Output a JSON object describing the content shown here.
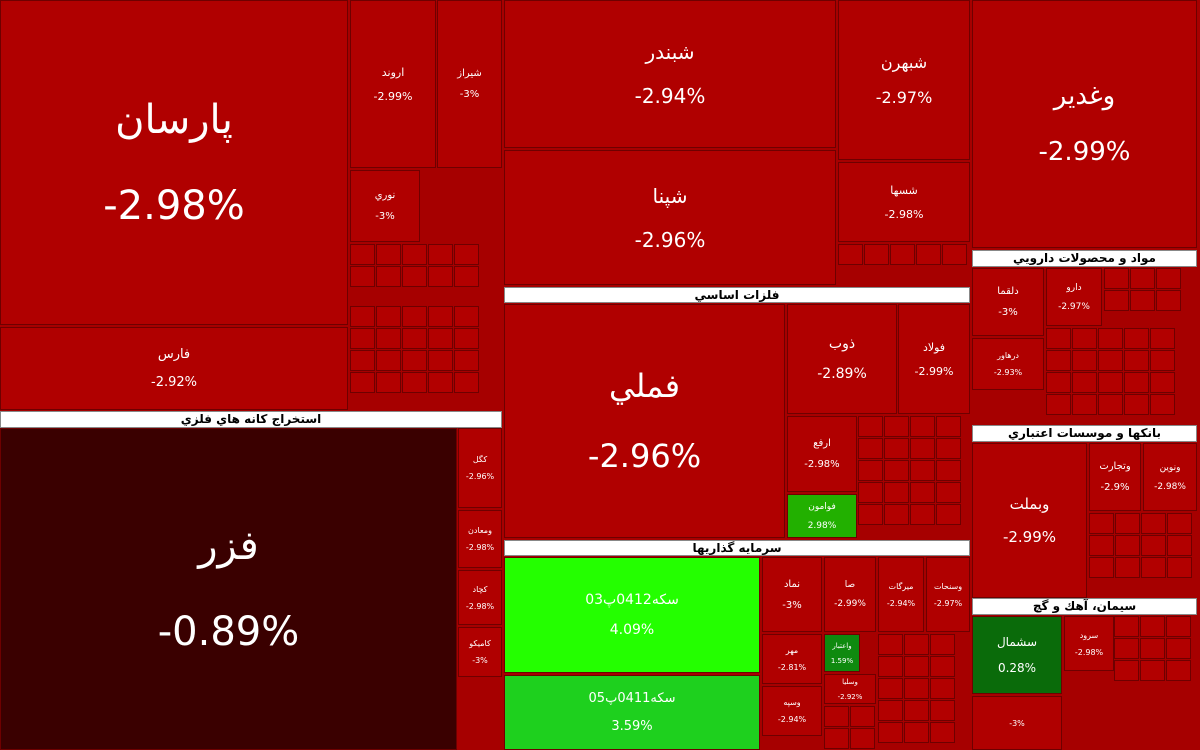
{
  "tiles": [
    {
      "name": "پارسان",
      "change": "-2.98%"
    },
    {
      "name": "اروند",
      "change": "-2.99%"
    },
    {
      "name": "شيراز",
      "change": "-3%"
    },
    {
      "name": "نوري",
      "change": "-3%"
    },
    {
      "name": "فارس",
      "change": "-2.92%"
    },
    {
      "name": "فزر",
      "change": "-0.89%"
    },
    {
      "name": "كگل",
      "change": "-2.96%"
    },
    {
      "name": "ومعادن",
      "change": "-2.98%"
    },
    {
      "name": "كچاد",
      "change": "-2.98%"
    },
    {
      "name": "كاميكو",
      "change": "-3%"
    },
    {
      "name": "شبندر",
      "change": "-2.94%"
    },
    {
      "name": "شپنا",
      "change": "-2.96%"
    },
    {
      "name": "فملي",
      "change": "-2.96%"
    },
    {
      "name": "ذوب",
      "change": "-2.89%"
    },
    {
      "name": "فولاد",
      "change": "-2.99%"
    },
    {
      "name": "ارفع",
      "change": "-2.98%"
    },
    {
      "name": "فوامون",
      "change": "2.98%"
    },
    {
      "name": "سكه0412پ03",
      "change": "4.09%"
    },
    {
      "name": "سكه0411پ05",
      "change": "3.59%"
    },
    {
      "name": "نماد",
      "change": "-3%"
    },
    {
      "name": "صا",
      "change": "-2.99%"
    },
    {
      "name": "ميرگات",
      "change": "-2.94%"
    },
    {
      "name": "وسنحات",
      "change": "-2.97%"
    },
    {
      "name": "مهر",
      "change": "-2.81%"
    },
    {
      "name": "واعتبار",
      "change": "1.59%"
    },
    {
      "name": "وسپه",
      "change": "-2.94%"
    },
    {
      "name": "وسليا",
      "change": "-2.92%"
    },
    {
      "name": "شبهرن",
      "change": "-2.97%"
    },
    {
      "name": "شسها",
      "change": "-2.98%"
    },
    {
      "name": "وغدير",
      "change": "-2.99%"
    },
    {
      "name": "دلقما",
      "change": "-3%"
    },
    {
      "name": "دارو",
      "change": "-2.97%"
    },
    {
      "name": "درهاور",
      "change": "-2.93%"
    },
    {
      "name": "وبملت",
      "change": "-2.99%"
    },
    {
      "name": "وتجارت",
      "change": "-2.9%"
    },
    {
      "name": "ونوين",
      "change": "-2.98%"
    },
    {
      "name": "سشمال",
      "change": "0.28%"
    },
    {
      "name": "سرود",
      "change": "-2.98%"
    },
    {
      "change": "-3%"
    }
  ],
  "headers": [
    "استخراج كانه هاي فلزي",
    "فلزات اساسي",
    "سرمايه گذاريها",
    "مواد و محصولات دارويي",
    "بانكها و موسسات اعتباري",
    "سيمان، آهك و گچ"
  ]
}
